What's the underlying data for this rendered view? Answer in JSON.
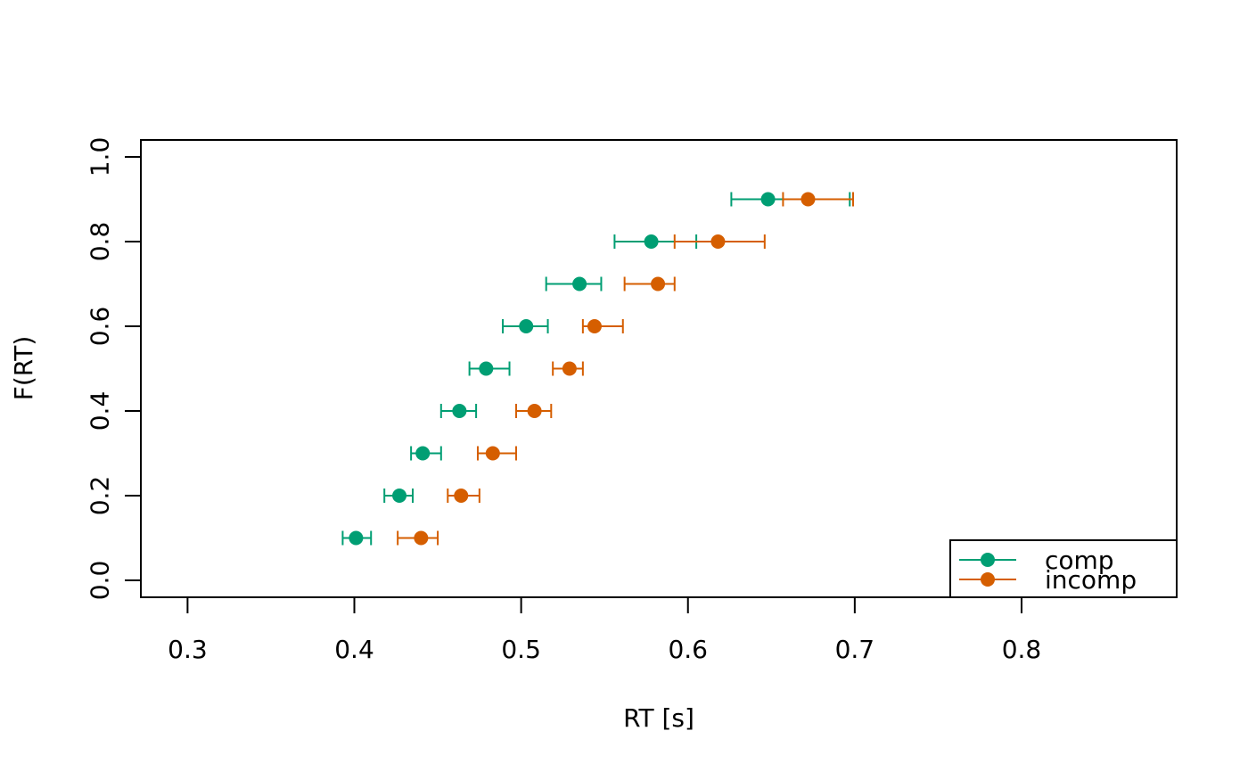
{
  "chart_data": {
    "type": "scatter",
    "title": "",
    "xlabel": "RT [s]",
    "ylabel": "F(RT)",
    "xlim": [
      0.272,
      0.893
    ],
    "ylim": [
      -0.04,
      1.04
    ],
    "xticks": [
      0.3,
      0.4,
      0.5,
      0.6,
      0.7,
      0.8
    ],
    "xtick_labels": [
      "0.3",
      "0.4",
      "0.5",
      "0.6",
      "0.7",
      "0.8"
    ],
    "yticks": [
      0.0,
      0.2,
      0.4,
      0.6,
      0.8,
      1.0
    ],
    "ytick_labels": [
      "0.0",
      "0.2",
      "0.4",
      "0.6",
      "0.8",
      "1.0"
    ],
    "grid": false,
    "legend_position": "bottom-right",
    "error_bars": "horizontal",
    "series": [
      {
        "name": "comp",
        "color": "#009E73",
        "points": [
          {
            "x": 0.401,
            "y": 0.1,
            "xmin": 0.393,
            "xmax": 0.41
          },
          {
            "x": 0.427,
            "y": 0.2,
            "xmin": 0.418,
            "xmax": 0.435
          },
          {
            "x": 0.441,
            "y": 0.3,
            "xmin": 0.434,
            "xmax": 0.452
          },
          {
            "x": 0.463,
            "y": 0.4,
            "xmin": 0.452,
            "xmax": 0.473
          },
          {
            "x": 0.479,
            "y": 0.5,
            "xmin": 0.469,
            "xmax": 0.493
          },
          {
            "x": 0.503,
            "y": 0.6,
            "xmin": 0.489,
            "xmax": 0.516
          },
          {
            "x": 0.535,
            "y": 0.7,
            "xmin": 0.515,
            "xmax": 0.548
          },
          {
            "x": 0.578,
            "y": 0.8,
            "xmin": 0.556,
            "xmax": 0.605
          },
          {
            "x": 0.648,
            "y": 0.9,
            "xmin": 0.626,
            "xmax": 0.697
          }
        ]
      },
      {
        "name": "incomp",
        "color": "#D55E00",
        "points": [
          {
            "x": 0.44,
            "y": 0.1,
            "xmin": 0.426,
            "xmax": 0.45
          },
          {
            "x": 0.464,
            "y": 0.2,
            "xmin": 0.456,
            "xmax": 0.475
          },
          {
            "x": 0.483,
            "y": 0.3,
            "xmin": 0.474,
            "xmax": 0.497
          },
          {
            "x": 0.508,
            "y": 0.4,
            "xmin": 0.497,
            "xmax": 0.518
          },
          {
            "x": 0.529,
            "y": 0.5,
            "xmin": 0.519,
            "xmax": 0.537
          },
          {
            "x": 0.544,
            "y": 0.6,
            "xmin": 0.537,
            "xmax": 0.561
          },
          {
            "x": 0.582,
            "y": 0.7,
            "xmin": 0.562,
            "xmax": 0.592
          },
          {
            "x": 0.618,
            "y": 0.8,
            "xmin": 0.592,
            "xmax": 0.646
          },
          {
            "x": 0.672,
            "y": 0.9,
            "xmin": 0.657,
            "xmax": 0.699
          }
        ]
      }
    ]
  }
}
